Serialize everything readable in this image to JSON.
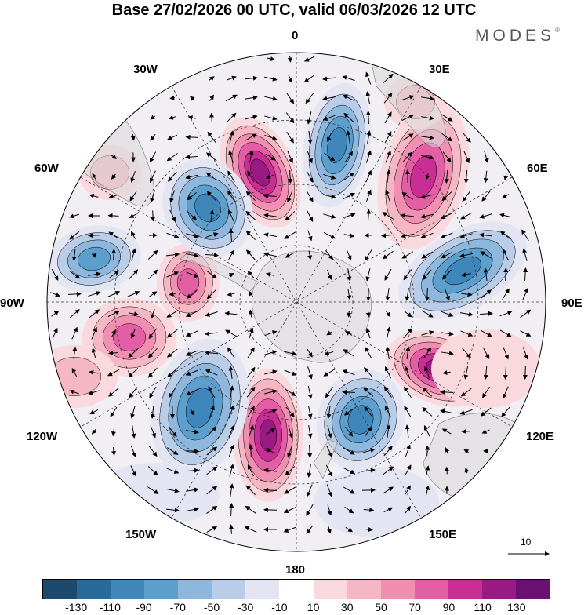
{
  "title": "Base 27/02/2026 00 UTC, valid 06/03/2026 12 UTC",
  "brand": "MODES",
  "brand_mark": "®",
  "lon_labels": {
    "n0": "0",
    "e30": "30E",
    "e60": "60E",
    "e90": "90E",
    "e120": "120E",
    "e150": "150E",
    "s180": "180",
    "w150": "150W",
    "w120": "120W",
    "w90": "90W",
    "w60": "60W",
    "w30": "30W"
  },
  "reference_vector": "10",
  "colorbar": {
    "ticks": [
      "-130",
      "-110",
      "-90",
      "-70",
      "-50",
      "-30",
      "-10",
      "10",
      "30",
      "50",
      "70",
      "90",
      "110",
      "130"
    ],
    "colors": [
      "#1c4a6e",
      "#2a6a9b",
      "#3f86ba",
      "#5d9fcc",
      "#8db7dc",
      "#b9cde8",
      "#e3e5f2",
      "#ffffff",
      "#f9d9de",
      "#f5b7c3",
      "#f08fb2",
      "#e35ea5",
      "#c82e93",
      "#9a1a83",
      "#6a1070"
    ]
  },
  "chart_data": {
    "type": "map",
    "projection": "south polar stereographic",
    "field": "shaded anomaly with wind vectors",
    "levels": [
      -130,
      -110,
      -90,
      -70,
      -50,
      -30,
      -10,
      10,
      30,
      50,
      70,
      90,
      110,
      130
    ]
  }
}
